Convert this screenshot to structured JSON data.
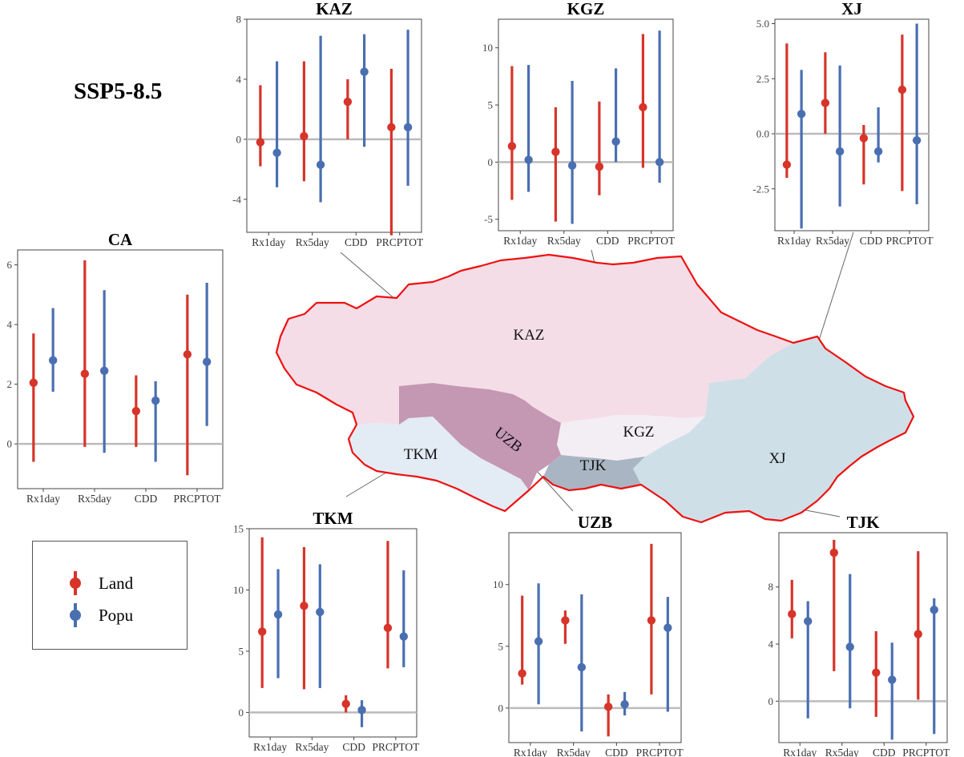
{
  "scenario_label": "SSP5-8.5",
  "legend": [
    {
      "label": "Land",
      "color": "#d7342a"
    },
    {
      "label": "Popu",
      "color": "#4a6fb1"
    }
  ],
  "colors": {
    "land": "#d7342a",
    "popu": "#4a6fb1",
    "border": "#ee1111",
    "zero_line": "#bbbbbb"
  },
  "map": {
    "regions": [
      {
        "name": "KAZ",
        "label": "KAZ",
        "fill": "#f4dde6"
      },
      {
        "name": "UZB",
        "label": "UZB",
        "fill": "#c497b3"
      },
      {
        "name": "KGZ",
        "label": "KGZ",
        "fill": "#f3eef4"
      },
      {
        "name": "TKM",
        "label": "TKM",
        "fill": "#e3ebf5"
      },
      {
        "name": "TJK",
        "label": "TJK",
        "fill": "#a9b5c2"
      },
      {
        "name": "XJ",
        "label": "XJ",
        "fill": "#cfdfe7"
      }
    ]
  },
  "chart_data": [
    {
      "id": "KAZ",
      "type": "scatter",
      "title": "KAZ",
      "categories": [
        "Rx1day",
        "Rx5day",
        "CDD",
        "PRCPTOT"
      ],
      "ylim": [
        -6.2,
        8
      ],
      "yticks": [
        -4,
        0,
        4,
        8
      ],
      "series": [
        {
          "name": "Land",
          "values": [
            -0.2,
            0.2,
            2.5,
            0.8
          ],
          "lower": [
            -1.8,
            -2.8,
            0.0,
            -6.4
          ],
          "upper": [
            3.6,
            5.2,
            4.0,
            4.7
          ]
        },
        {
          "name": "Popu",
          "values": [
            -0.9,
            -1.7,
            4.5,
            0.8
          ],
          "lower": [
            -3.2,
            -4.2,
            -0.5,
            -3.1
          ],
          "upper": [
            5.2,
            6.9,
            7.0,
            7.3
          ]
        }
      ]
    },
    {
      "id": "KGZ",
      "type": "scatter",
      "title": "KGZ",
      "categories": [
        "Rx1day",
        "Rx5day",
        "CDD",
        "PRCPTOT"
      ],
      "ylim": [
        -6,
        12.5
      ],
      "yticks": [
        -5,
        0,
        5,
        10
      ],
      "series": [
        {
          "name": "Land",
          "values": [
            1.4,
            0.9,
            -0.4,
            4.8
          ],
          "lower": [
            -3.3,
            -5.2,
            -2.9,
            -0.5
          ],
          "upper": [
            8.4,
            4.8,
            5.3,
            11.2
          ]
        },
        {
          "name": "Popu",
          "values": [
            0.2,
            -0.3,
            1.8,
            0.0
          ],
          "lower": [
            -2.6,
            -5.4,
            0.0,
            -1.8
          ],
          "upper": [
            8.5,
            7.1,
            8.2,
            11.5
          ]
        }
      ]
    },
    {
      "id": "XJ",
      "type": "scatter",
      "title": "XJ",
      "categories": [
        "Rx1day",
        "Rx5day",
        "CDD",
        "PRCPTOT"
      ],
      "ylim": [
        -4.4,
        5.2
      ],
      "yticks": [
        -2.5,
        0.0,
        2.5,
        5.0
      ],
      "tickformat": "fixed1",
      "series": [
        {
          "name": "Land",
          "values": [
            -1.4,
            1.4,
            -0.2,
            2.0
          ],
          "lower": [
            -2.0,
            0.0,
            -2.3,
            -2.6
          ],
          "upper": [
            4.1,
            3.7,
            0.4,
            4.5
          ]
        },
        {
          "name": "Popu",
          "values": [
            0.9,
            -0.8,
            -0.8,
            -0.3
          ],
          "lower": [
            -4.3,
            -3.3,
            -1.3,
            -3.2
          ],
          "upper": [
            2.9,
            3.1,
            1.2,
            5.0
          ]
        }
      ]
    },
    {
      "id": "CA",
      "type": "scatter",
      "title": "CA",
      "categories": [
        "Rx1day",
        "Rx5day",
        "CDD",
        "PRCPTOT"
      ],
      "ylim": [
        -1.5,
        6.5
      ],
      "yticks": [
        0,
        2,
        4,
        6
      ],
      "series": [
        {
          "name": "Land",
          "values": [
            2.05,
            2.35,
            1.1,
            3.0
          ],
          "lower": [
            -0.6,
            -0.1,
            -0.1,
            -1.05
          ],
          "upper": [
            3.7,
            6.15,
            2.3,
            5.0
          ]
        },
        {
          "name": "Popu",
          "values": [
            2.8,
            2.45,
            1.45,
            2.75
          ],
          "lower": [
            1.75,
            -0.3,
            -0.6,
            0.6
          ],
          "upper": [
            4.55,
            5.15,
            2.1,
            5.4
          ]
        }
      ]
    },
    {
      "id": "TKM",
      "type": "scatter",
      "title": "TKM",
      "categories": [
        "Rx1day",
        "Rx5day",
        "CDD",
        "PRCPTOT"
      ],
      "ylim": [
        -2,
        15
      ],
      "yticks": [
        0,
        5,
        10,
        15
      ],
      "series": [
        {
          "name": "Land",
          "values": [
            6.6,
            8.7,
            0.7,
            6.9
          ],
          "lower": [
            2.0,
            1.9,
            0.0,
            3.6
          ],
          "upper": [
            14.3,
            13.5,
            1.4,
            14.0
          ]
        },
        {
          "name": "Popu",
          "values": [
            8.0,
            8.2,
            0.2,
            6.2
          ],
          "lower": [
            2.8,
            2.0,
            -1.2,
            3.7
          ],
          "upper": [
            11.7,
            12.1,
            1.0,
            11.6
          ]
        }
      ]
    },
    {
      "id": "UZB",
      "type": "scatter",
      "title": "UZB",
      "categories": [
        "Rx1day",
        "Rx5day",
        "CDD",
        "PRCPTOT"
      ],
      "ylim": [
        -2.8,
        14.2
      ],
      "yticks": [
        0,
        5,
        10
      ],
      "series": [
        {
          "name": "Land",
          "values": [
            2.8,
            7.1,
            0.1,
            7.1
          ],
          "lower": [
            1.9,
            5.2,
            -2.3,
            1.1
          ],
          "upper": [
            9.1,
            7.9,
            1.1,
            13.3
          ]
        },
        {
          "name": "Popu",
          "values": [
            5.4,
            3.3,
            0.3,
            6.5
          ],
          "lower": [
            0.3,
            -1.9,
            -0.6,
            -0.3
          ],
          "upper": [
            10.1,
            9.2,
            1.3,
            9.0
          ]
        }
      ]
    },
    {
      "id": "TJK",
      "type": "scatter",
      "title": "TJK",
      "categories": [
        "Rx1day",
        "Rx5day",
        "CDD",
        "PRCPTOT"
      ],
      "ylim": [
        -2.9,
        11.8
      ],
      "yticks": [
        0,
        4,
        8
      ],
      "series": [
        {
          "name": "Land",
          "values": [
            6.1,
            10.4,
            2.0,
            4.7
          ],
          "lower": [
            4.4,
            2.1,
            -1.1,
            0.1
          ],
          "upper": [
            8.5,
            11.3,
            4.9,
            10.5
          ]
        },
        {
          "name": "Popu",
          "values": [
            5.6,
            3.8,
            1.5,
            6.4
          ],
          "lower": [
            -1.2,
            -0.5,
            -2.7,
            -2.3
          ],
          "upper": [
            7.0,
            8.9,
            4.1,
            7.2
          ]
        }
      ]
    }
  ]
}
